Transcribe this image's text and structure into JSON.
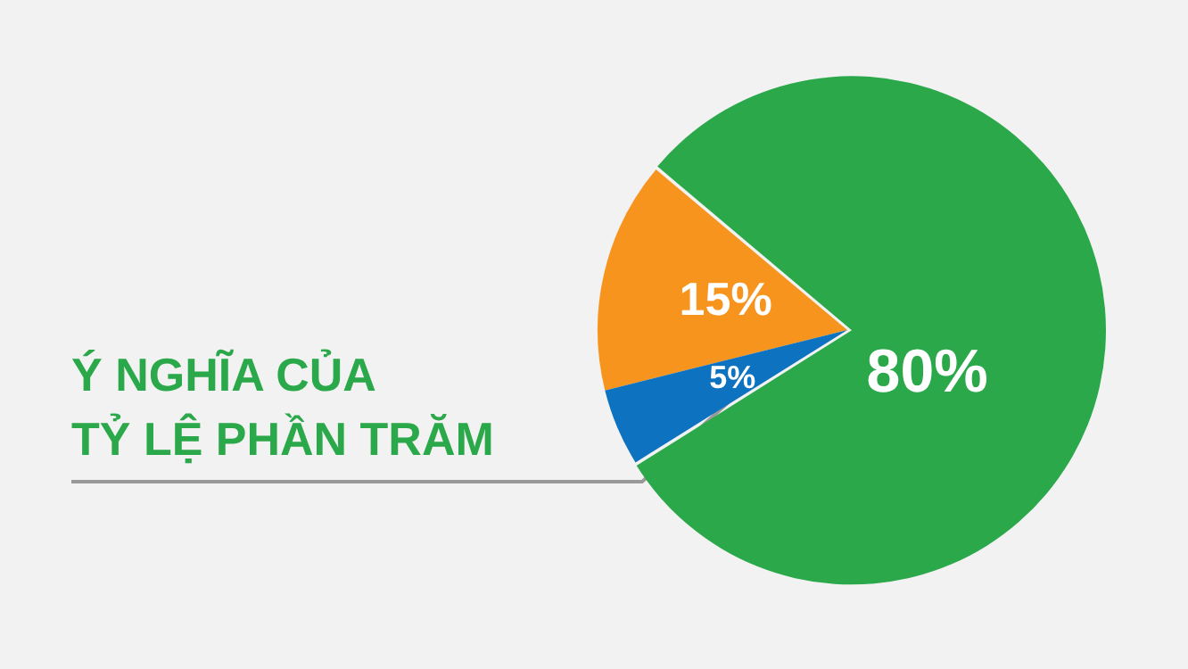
{
  "chart_data": {
    "type": "pie",
    "title": "Ý NGHĨA CỦA TỶ LỆ PHẦN TRĂM",
    "categories": [
      null,
      null,
      null
    ],
    "values": [
      15,
      80,
      5
    ],
    "colors": [
      "#f7941d",
      "#2ba84a",
      "#0d72c0"
    ],
    "value_labels": [
      "15%",
      "80%",
      "5%"
    ],
    "legend": false
  }
}
